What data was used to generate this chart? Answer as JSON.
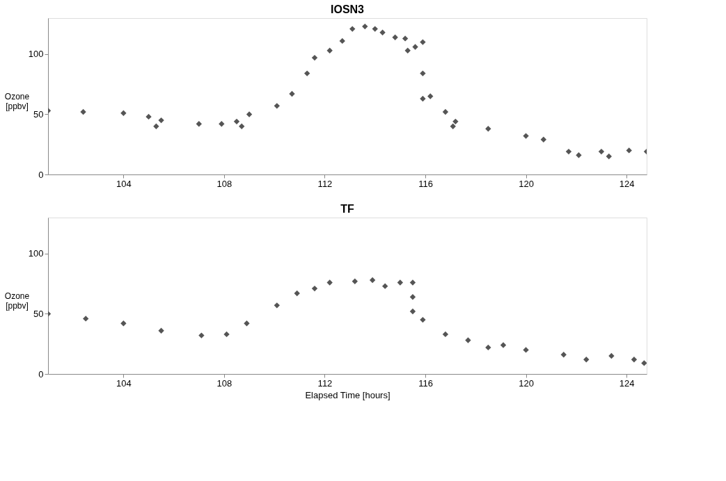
{
  "chart_data": [
    {
      "type": "scatter",
      "title": "IOSN3",
      "ylabel": "Ozone [ppbv]",
      "xlim": [
        101,
        124.8
      ],
      "ylim": [
        0,
        130
      ],
      "xticks": [
        104,
        108,
        112,
        116,
        120,
        124
      ],
      "yticks": [
        0,
        50,
        100
      ],
      "grid": false,
      "marker": "diamond",
      "series": [
        {
          "color": "#555555",
          "x": [
            101.0,
            102.4,
            104.0,
            105.0,
            105.3,
            105.5,
            107.0,
            107.9,
            108.5,
            108.7,
            109.0,
            110.1,
            110.7,
            111.3,
            111.6,
            112.2,
            112.7,
            113.1,
            113.6,
            114.0,
            114.3,
            114.8,
            115.2,
            115.3,
            115.6,
            115.9,
            115.9,
            115.9,
            116.2,
            116.8,
            117.1,
            117.2,
            118.5,
            120.0,
            120.7,
            121.7,
            122.1,
            123.0,
            123.3,
            124.1,
            124.8
          ],
          "values": [
            53,
            52,
            51,
            48,
            40,
            45,
            42,
            42,
            44,
            40,
            50,
            57,
            67,
            84,
            97,
            103,
            111,
            121,
            123,
            121,
            118,
            114,
            113,
            103,
            106,
            110,
            84,
            63,
            65,
            52,
            40,
            44,
            38,
            32,
            29,
            19,
            16,
            19,
            15,
            20,
            19
          ]
        }
      ]
    },
    {
      "type": "scatter",
      "title": "TF",
      "ylabel": "Ozone [ppbv]",
      "xlabel": "Elapsed Time [hours]",
      "xlim": [
        101,
        124.8
      ],
      "ylim": [
        0,
        130
      ],
      "xticks": [
        104,
        108,
        112,
        116,
        120,
        124
      ],
      "yticks": [
        0,
        50,
        100
      ],
      "grid": false,
      "marker": "diamond",
      "series": [
        {
          "color": "#555555",
          "x": [
            101.0,
            102.5,
            104.0,
            105.5,
            107.1,
            108.1,
            108.9,
            110.1,
            110.9,
            111.6,
            112.2,
            113.2,
            113.9,
            114.4,
            115.0,
            115.5,
            115.5,
            115.5,
            115.9,
            116.8,
            117.7,
            118.5,
            119.1,
            120.0,
            121.5,
            122.4,
            123.4,
            124.3,
            124.7
          ],
          "values": [
            50,
            46,
            42,
            36,
            32,
            33,
            42,
            57,
            67,
            71,
            76,
            77,
            78,
            73,
            76,
            76,
            64,
            52,
            45,
            33,
            28,
            22,
            24,
            20,
            16,
            12,
            15,
            12,
            9
          ]
        }
      ]
    }
  ]
}
